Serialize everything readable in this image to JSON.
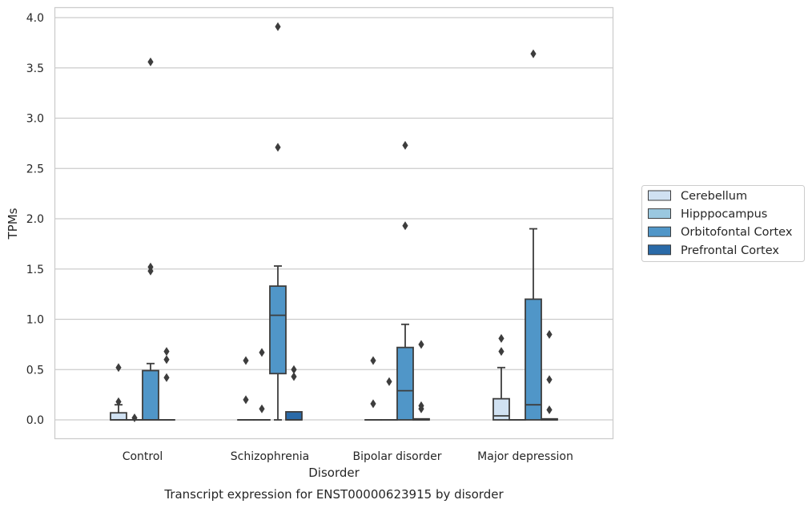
{
  "chart_data": {
    "type": "box",
    "title": "",
    "caption": "Transcript expression for ENST00000623915 by disorder",
    "xlabel": "Disorder",
    "ylabel": "TPMs",
    "ylim": [
      -0.19,
      4.1
    ],
    "yticks": [
      "0.0",
      "0.5",
      "1.0",
      "1.5",
      "2.0",
      "2.5",
      "3.0",
      "3.5",
      "4.0"
    ],
    "grid": "horizontal",
    "legend_position": "outside-right",
    "categories": [
      "Control",
      "Schizophrenia",
      "Bipolar disorder",
      "Major depression"
    ],
    "series": [
      {
        "name": "Cerebellum",
        "color": "#d0e1f2",
        "boxes": [
          {
            "q1": 0.0,
            "median": 0.0,
            "q3": 0.07,
            "whisker_low": 0.0,
            "whisker_high": 0.15,
            "outliers": [
              0.52,
              0.18
            ]
          },
          {
            "q1": 0.0,
            "median": 0.0,
            "q3": 0.0,
            "whisker_low": 0.0,
            "whisker_high": 0.0,
            "outliers": [
              0.59,
              0.2
            ]
          },
          {
            "q1": 0.0,
            "median": 0.0,
            "q3": 0.0,
            "whisker_low": 0.0,
            "whisker_high": 0.0,
            "outliers": [
              0.59,
              0.16
            ]
          },
          {
            "q1": 0.0,
            "median": 0.04,
            "q3": 0.21,
            "whisker_low": 0.0,
            "whisker_high": 0.52,
            "outliers": [
              0.81,
              0.68
            ]
          }
        ]
      },
      {
        "name": "Hipppocampus",
        "color": "#9ac8e0",
        "boxes": [
          {
            "q1": 0.0,
            "median": 0.0,
            "q3": 0.0,
            "whisker_low": 0.0,
            "whisker_high": 0.0,
            "outliers": [
              0.02
            ]
          },
          {
            "q1": 0.0,
            "median": 0.0,
            "q3": 0.0,
            "whisker_low": 0.0,
            "whisker_high": 0.0,
            "outliers": [
              0.67,
              0.11
            ]
          },
          {
            "q1": 0.0,
            "median": 0.0,
            "q3": 0.0,
            "whisker_low": 0.0,
            "whisker_high": 0.0,
            "outliers": [
              0.38
            ]
          },
          {
            "q1": 0.0,
            "median": 0.0,
            "q3": 0.0,
            "whisker_low": 0.0,
            "whisker_high": 0.0,
            "outliers": []
          }
        ]
      },
      {
        "name": "Orbitofontal Cortex",
        "color": "#5096c8",
        "boxes": [
          {
            "q1": 0.0,
            "median": 0.0,
            "q3": 0.49,
            "whisker_low": 0.0,
            "whisker_high": 0.56,
            "outliers": [
              3.56,
              1.52,
              1.48
            ]
          },
          {
            "q1": 0.46,
            "median": 1.04,
            "q3": 1.33,
            "whisker_low": 0.0,
            "whisker_high": 1.53,
            "outliers": [
              3.91,
              2.71
            ]
          },
          {
            "q1": 0.0,
            "median": 0.29,
            "q3": 0.72,
            "whisker_low": 0.0,
            "whisker_high": 0.95,
            "outliers": [
              2.73,
              1.93
            ]
          },
          {
            "q1": 0.0,
            "median": 0.15,
            "q3": 1.2,
            "whisker_low": 0.0,
            "whisker_high": 1.9,
            "outliers": [
              3.64
            ]
          }
        ]
      },
      {
        "name": "Prefrontal Cortex",
        "color": "#2a6aa8",
        "boxes": [
          {
            "q1": 0.0,
            "median": 0.0,
            "q3": 0.0,
            "whisker_low": 0.0,
            "whisker_high": 0.0,
            "outliers": [
              0.68,
              0.6,
              0.42
            ]
          },
          {
            "q1": 0.0,
            "median": 0.0,
            "q3": 0.08,
            "whisker_low": 0.0,
            "whisker_high": 0.08,
            "outliers": [
              0.5,
              0.43
            ]
          },
          {
            "q1": 0.0,
            "median": 0.0,
            "q3": 0.01,
            "whisker_low": 0.0,
            "whisker_high": 0.01,
            "outliers": [
              0.75,
              0.14,
              0.11
            ]
          },
          {
            "q1": 0.0,
            "median": 0.0,
            "q3": 0.01,
            "whisker_low": 0.0,
            "whisker_high": 0.01,
            "outliers": [
              0.85,
              0.4,
              0.1
            ]
          }
        ]
      }
    ]
  }
}
